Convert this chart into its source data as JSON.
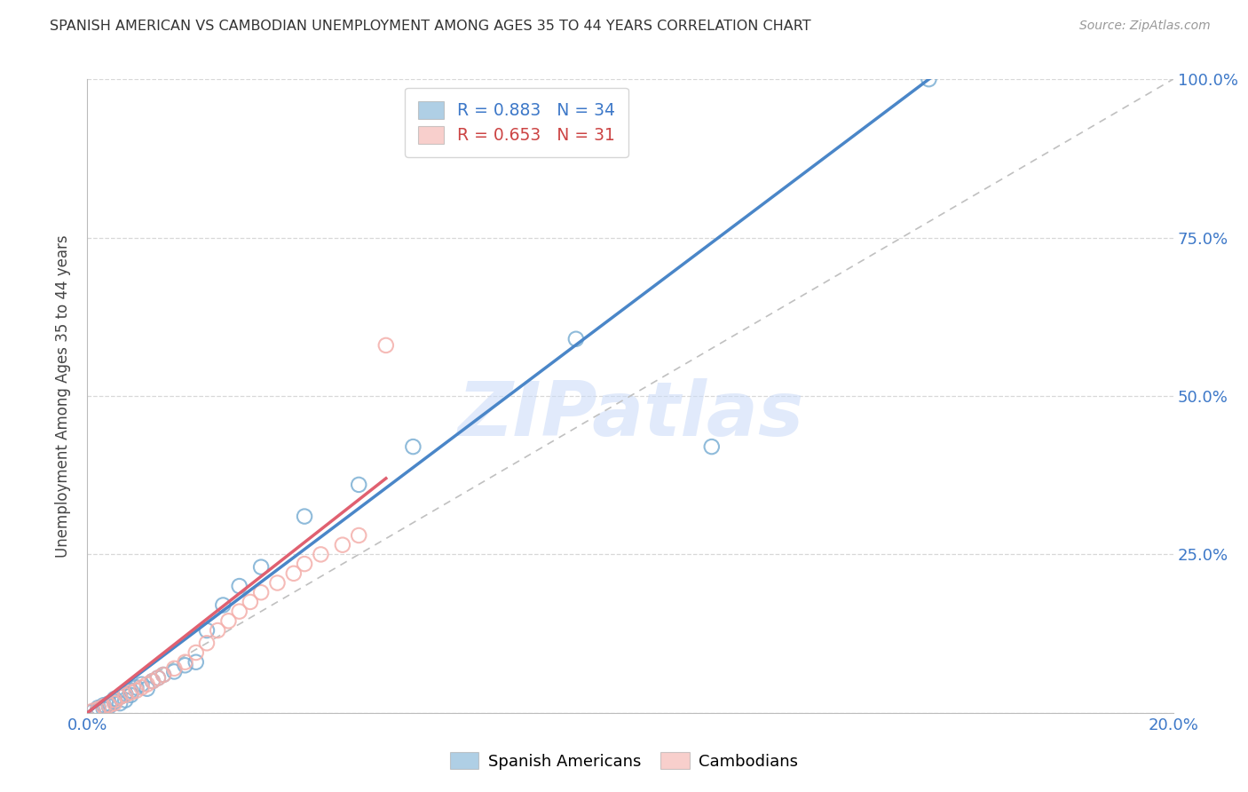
{
  "title": "SPANISH AMERICAN VS CAMBODIAN UNEMPLOYMENT AMONG AGES 35 TO 44 YEARS CORRELATION CHART",
  "source": "Source: ZipAtlas.com",
  "ylabel": "Unemployment Among Ages 35 to 44 years",
  "watermark": "ZIPatlas",
  "blue_R": 0.883,
  "blue_N": 34,
  "pink_R": 0.653,
  "pink_N": 31,
  "xlim": [
    0.0,
    0.2
  ],
  "ylim": [
    0.0,
    1.0
  ],
  "blue_color": "#7BAFD4",
  "pink_color": "#F4AFAB",
  "blue_line_color": "#4A86C8",
  "pink_line_color": "#E06070",
  "diagonal_color": "#c0c0c0",
  "blue_scatter_x": [
    0.001,
    0.002,
    0.002,
    0.003,
    0.003,
    0.004,
    0.004,
    0.005,
    0.005,
    0.006,
    0.006,
    0.007,
    0.007,
    0.008,
    0.008,
    0.009,
    0.01,
    0.011,
    0.012,
    0.013,
    0.014,
    0.016,
    0.018,
    0.02,
    0.022,
    0.025,
    0.028,
    0.032,
    0.04,
    0.05,
    0.06,
    0.09,
    0.115,
    0.155
  ],
  "blue_scatter_y": [
    0.002,
    0.004,
    0.008,
    0.006,
    0.012,
    0.01,
    0.015,
    0.018,
    0.022,
    0.015,
    0.025,
    0.02,
    0.03,
    0.028,
    0.035,
    0.04,
    0.045,
    0.038,
    0.05,
    0.055,
    0.06,
    0.065,
    0.075,
    0.08,
    0.13,
    0.17,
    0.2,
    0.23,
    0.31,
    0.36,
    0.42,
    0.59,
    0.42,
    1.0
  ],
  "pink_scatter_x": [
    0.001,
    0.002,
    0.003,
    0.004,
    0.005,
    0.005,
    0.006,
    0.007,
    0.008,
    0.009,
    0.01,
    0.011,
    0.012,
    0.013,
    0.014,
    0.016,
    0.018,
    0.02,
    0.022,
    0.024,
    0.026,
    0.028,
    0.03,
    0.032,
    0.035,
    0.038,
    0.04,
    0.043,
    0.047,
    0.05,
    0.055
  ],
  "pink_scatter_y": [
    0.003,
    0.006,
    0.01,
    0.012,
    0.015,
    0.02,
    0.025,
    0.028,
    0.032,
    0.035,
    0.04,
    0.045,
    0.05,
    0.055,
    0.06,
    0.07,
    0.08,
    0.095,
    0.11,
    0.13,
    0.145,
    0.16,
    0.175,
    0.19,
    0.205,
    0.22,
    0.235,
    0.25,
    0.265,
    0.28,
    0.58
  ],
  "blue_line_x": [
    0.0,
    0.155
  ],
  "blue_line_y": [
    0.0,
    1.0
  ],
  "pink_line_x": [
    0.0,
    0.055
  ],
  "pink_line_y": [
    0.0,
    0.37
  ],
  "background_color": "#ffffff",
  "grid_color": "#d8d8d8"
}
